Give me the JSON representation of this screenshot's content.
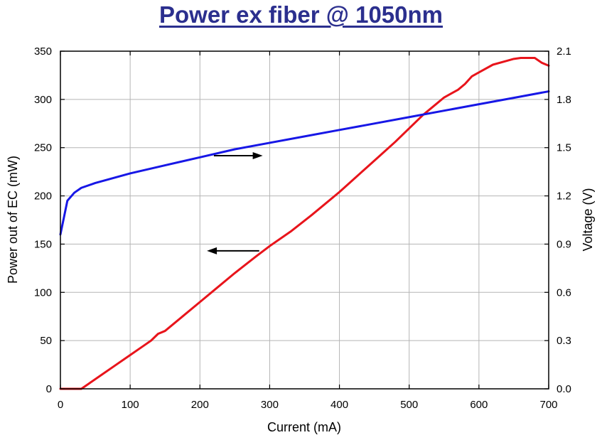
{
  "title": "Power ex fiber @ 1050nm",
  "chart_data": {
    "type": "line",
    "xlabel": "Current (mA)",
    "ylabel_left": "Power out of EC (mW)",
    "ylabel_right": "Voltage (V)",
    "xlim": [
      0,
      700
    ],
    "ylim_left": [
      0,
      350
    ],
    "ylim_right": [
      0.0,
      2.1
    ],
    "x_ticks": [
      "0",
      "100",
      "200",
      "300",
      "400",
      "500",
      "600",
      "700"
    ],
    "y_left_ticks": [
      "0",
      "50",
      "100",
      "150",
      "200",
      "250",
      "300",
      "350"
    ],
    "y_right_ticks": [
      "0.0",
      "0.3",
      "0.6",
      "0.9",
      "1.2",
      "1.5",
      "1.8",
      "2.1"
    ],
    "grid": true,
    "colors": {
      "power": "#e8141b",
      "voltage": "#1717e6",
      "title": "#2b2f8e"
    },
    "series": [
      {
        "axis": "left",
        "color": "#e8141b",
        "x": [
          0,
          30,
          40,
          60,
          80,
          100,
          120,
          130,
          140,
          150,
          170,
          200,
          220,
          250,
          280,
          300,
          330,
          360,
          380,
          400,
          420,
          440,
          460,
          480,
          500,
          520,
          540,
          550,
          560,
          570,
          580,
          590,
          600,
          620,
          640,
          650,
          660,
          680,
          690,
          700
        ],
        "y": [
          0,
          0,
          5,
          15,
          25,
          35,
          45,
          50,
          57,
          60,
          72,
          90,
          102,
          120,
          137,
          148,
          163,
          180,
          192,
          204,
          217,
          230,
          243,
          256,
          270,
          284,
          296,
          302,
          306,
          310,
          316,
          324,
          328,
          336,
          340,
          342,
          343,
          343,
          338,
          335
        ]
      },
      {
        "axis": "right",
        "color": "#1717e6",
        "x": [
          0,
          10,
          20,
          30,
          50,
          75,
          100,
          150,
          200,
          250,
          300,
          350,
          400,
          450,
          500,
          550,
          600,
          650,
          700
        ],
        "y": [
          0.96,
          1.17,
          1.22,
          1.25,
          1.28,
          1.31,
          1.34,
          1.39,
          1.44,
          1.49,
          1.53,
          1.57,
          1.61,
          1.65,
          1.69,
          1.73,
          1.77,
          1.81,
          1.85
        ]
      }
    ],
    "annotations": [
      {
        "type": "arrow",
        "direction": "right",
        "points_to": "right",
        "x_from": 220,
        "x_to": 290,
        "y": 1.45
      },
      {
        "type": "arrow",
        "direction": "left",
        "points_to": "left",
        "x_from": 285,
        "x_to": 210,
        "y": 143
      }
    ]
  }
}
